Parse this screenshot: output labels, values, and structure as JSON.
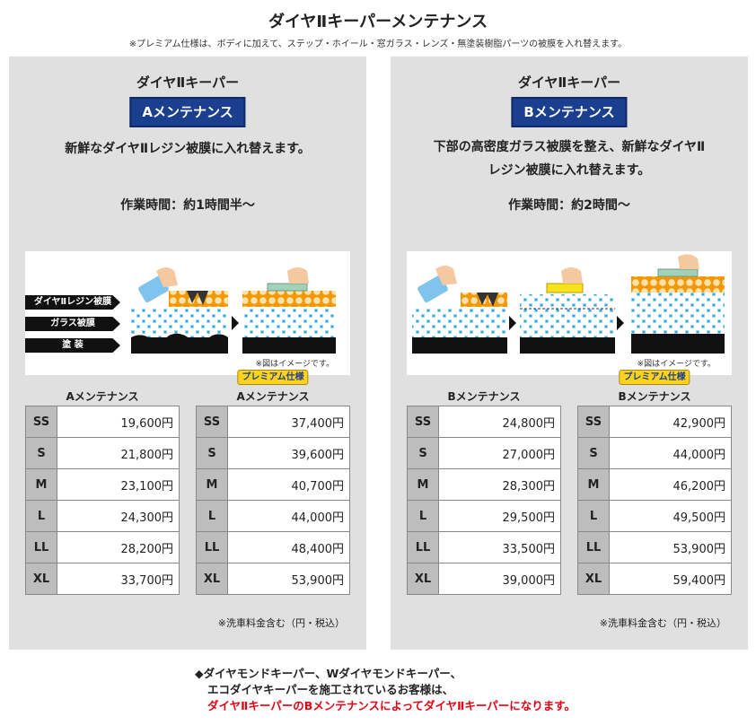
{
  "header": {
    "title": "ダイヤⅡキーパーメンテナンス",
    "note": "※プレミアム仕様は、ボディに加えて、ステップ・ホイール・窓ガラス・レンズ・無塗装樹脂パーツの被膜を入れ替えます。"
  },
  "panels": [
    {
      "title": "ダイヤⅡキーパー",
      "badge": "Aメンテナンス",
      "desc": [
        "新鮮なダイヤⅡレジン被膜に入れ替えます。"
      ],
      "time": "作業時間：約1時間半～",
      "image_note": "※図はイメージです。",
      "layer_labels": [
        "ダイヤⅡレジン被膜",
        "ガラス被膜",
        "塗 装"
      ],
      "tax_note": "※洗車料金含む（円・税込）",
      "tables": [
        {
          "premium": "",
          "header": "Aメンテナンス",
          "rows": [
            {
              "size": "SS",
              "price": "19,600円"
            },
            {
              "size": "S",
              "price": "21,800円"
            },
            {
              "size": "M",
              "price": "23,100円"
            },
            {
              "size": "L",
              "price": "24,300円"
            },
            {
              "size": "LL",
              "price": "28,200円"
            },
            {
              "size": "XL",
              "price": "33,700円"
            }
          ]
        },
        {
          "premium": "プレミアム仕様",
          "header": "Aメンテナンス",
          "rows": [
            {
              "size": "SS",
              "price": "37,400円"
            },
            {
              "size": "S",
              "price": "39,600円"
            },
            {
              "size": "M",
              "price": "40,700円"
            },
            {
              "size": "L",
              "price": "44,000円"
            },
            {
              "size": "LL",
              "price": "48,400円"
            },
            {
              "size": "XL",
              "price": "53,900円"
            }
          ]
        }
      ]
    },
    {
      "title": "ダイヤⅡキーパー",
      "badge": "Bメンテナンス",
      "desc": [
        "下部の高密度ガラス被膜を整え、新鮮なダイヤⅡ",
        "レジン被膜に入れ替えます。"
      ],
      "time": "作業時間：約2時間～",
      "image_note": "※図はイメージです。",
      "layer_labels": [],
      "tax_note": "※洗車料金含む（円・税込）",
      "tables": [
        {
          "premium": "",
          "header": "Bメンテナンス",
          "rows": [
            {
              "size": "SS",
              "price": "24,800円"
            },
            {
              "size": "S",
              "price": "27,000円"
            },
            {
              "size": "M",
              "price": "28,300円"
            },
            {
              "size": "L",
              "price": "29,500円"
            },
            {
              "size": "LL",
              "price": "33,500円"
            },
            {
              "size": "XL",
              "price": "39,000円"
            }
          ]
        },
        {
          "premium": "プレミアム仕様",
          "header": "Bメンテナンス",
          "rows": [
            {
              "size": "SS",
              "price": "42,900円"
            },
            {
              "size": "S",
              "price": "44,000円"
            },
            {
              "size": "M",
              "price": "46,200円"
            },
            {
              "size": "L",
              "price": "49,500円"
            },
            {
              "size": "LL",
              "price": "53,900円"
            },
            {
              "size": "XL",
              "price": "59,400円"
            }
          ]
        }
      ]
    }
  ],
  "footer": {
    "line1": "◆ダイヤモンドキーパー、Wダイヤモンドキーパー、",
    "line2": "エコダイヤキーパーを施工されているお客様は、",
    "line3": "ダイヤⅡキーパーのBメンテナンスによってダイヤⅡキーパーになります。"
  },
  "colors": {
    "badge": "#1b3f8f",
    "panel_bg": "#e0e0e0",
    "premium_badge": "#ffd319",
    "footer_emphasis": "#e60012",
    "glass_dots": "#29a8e0",
    "resin_dots": "#f39800"
  }
}
